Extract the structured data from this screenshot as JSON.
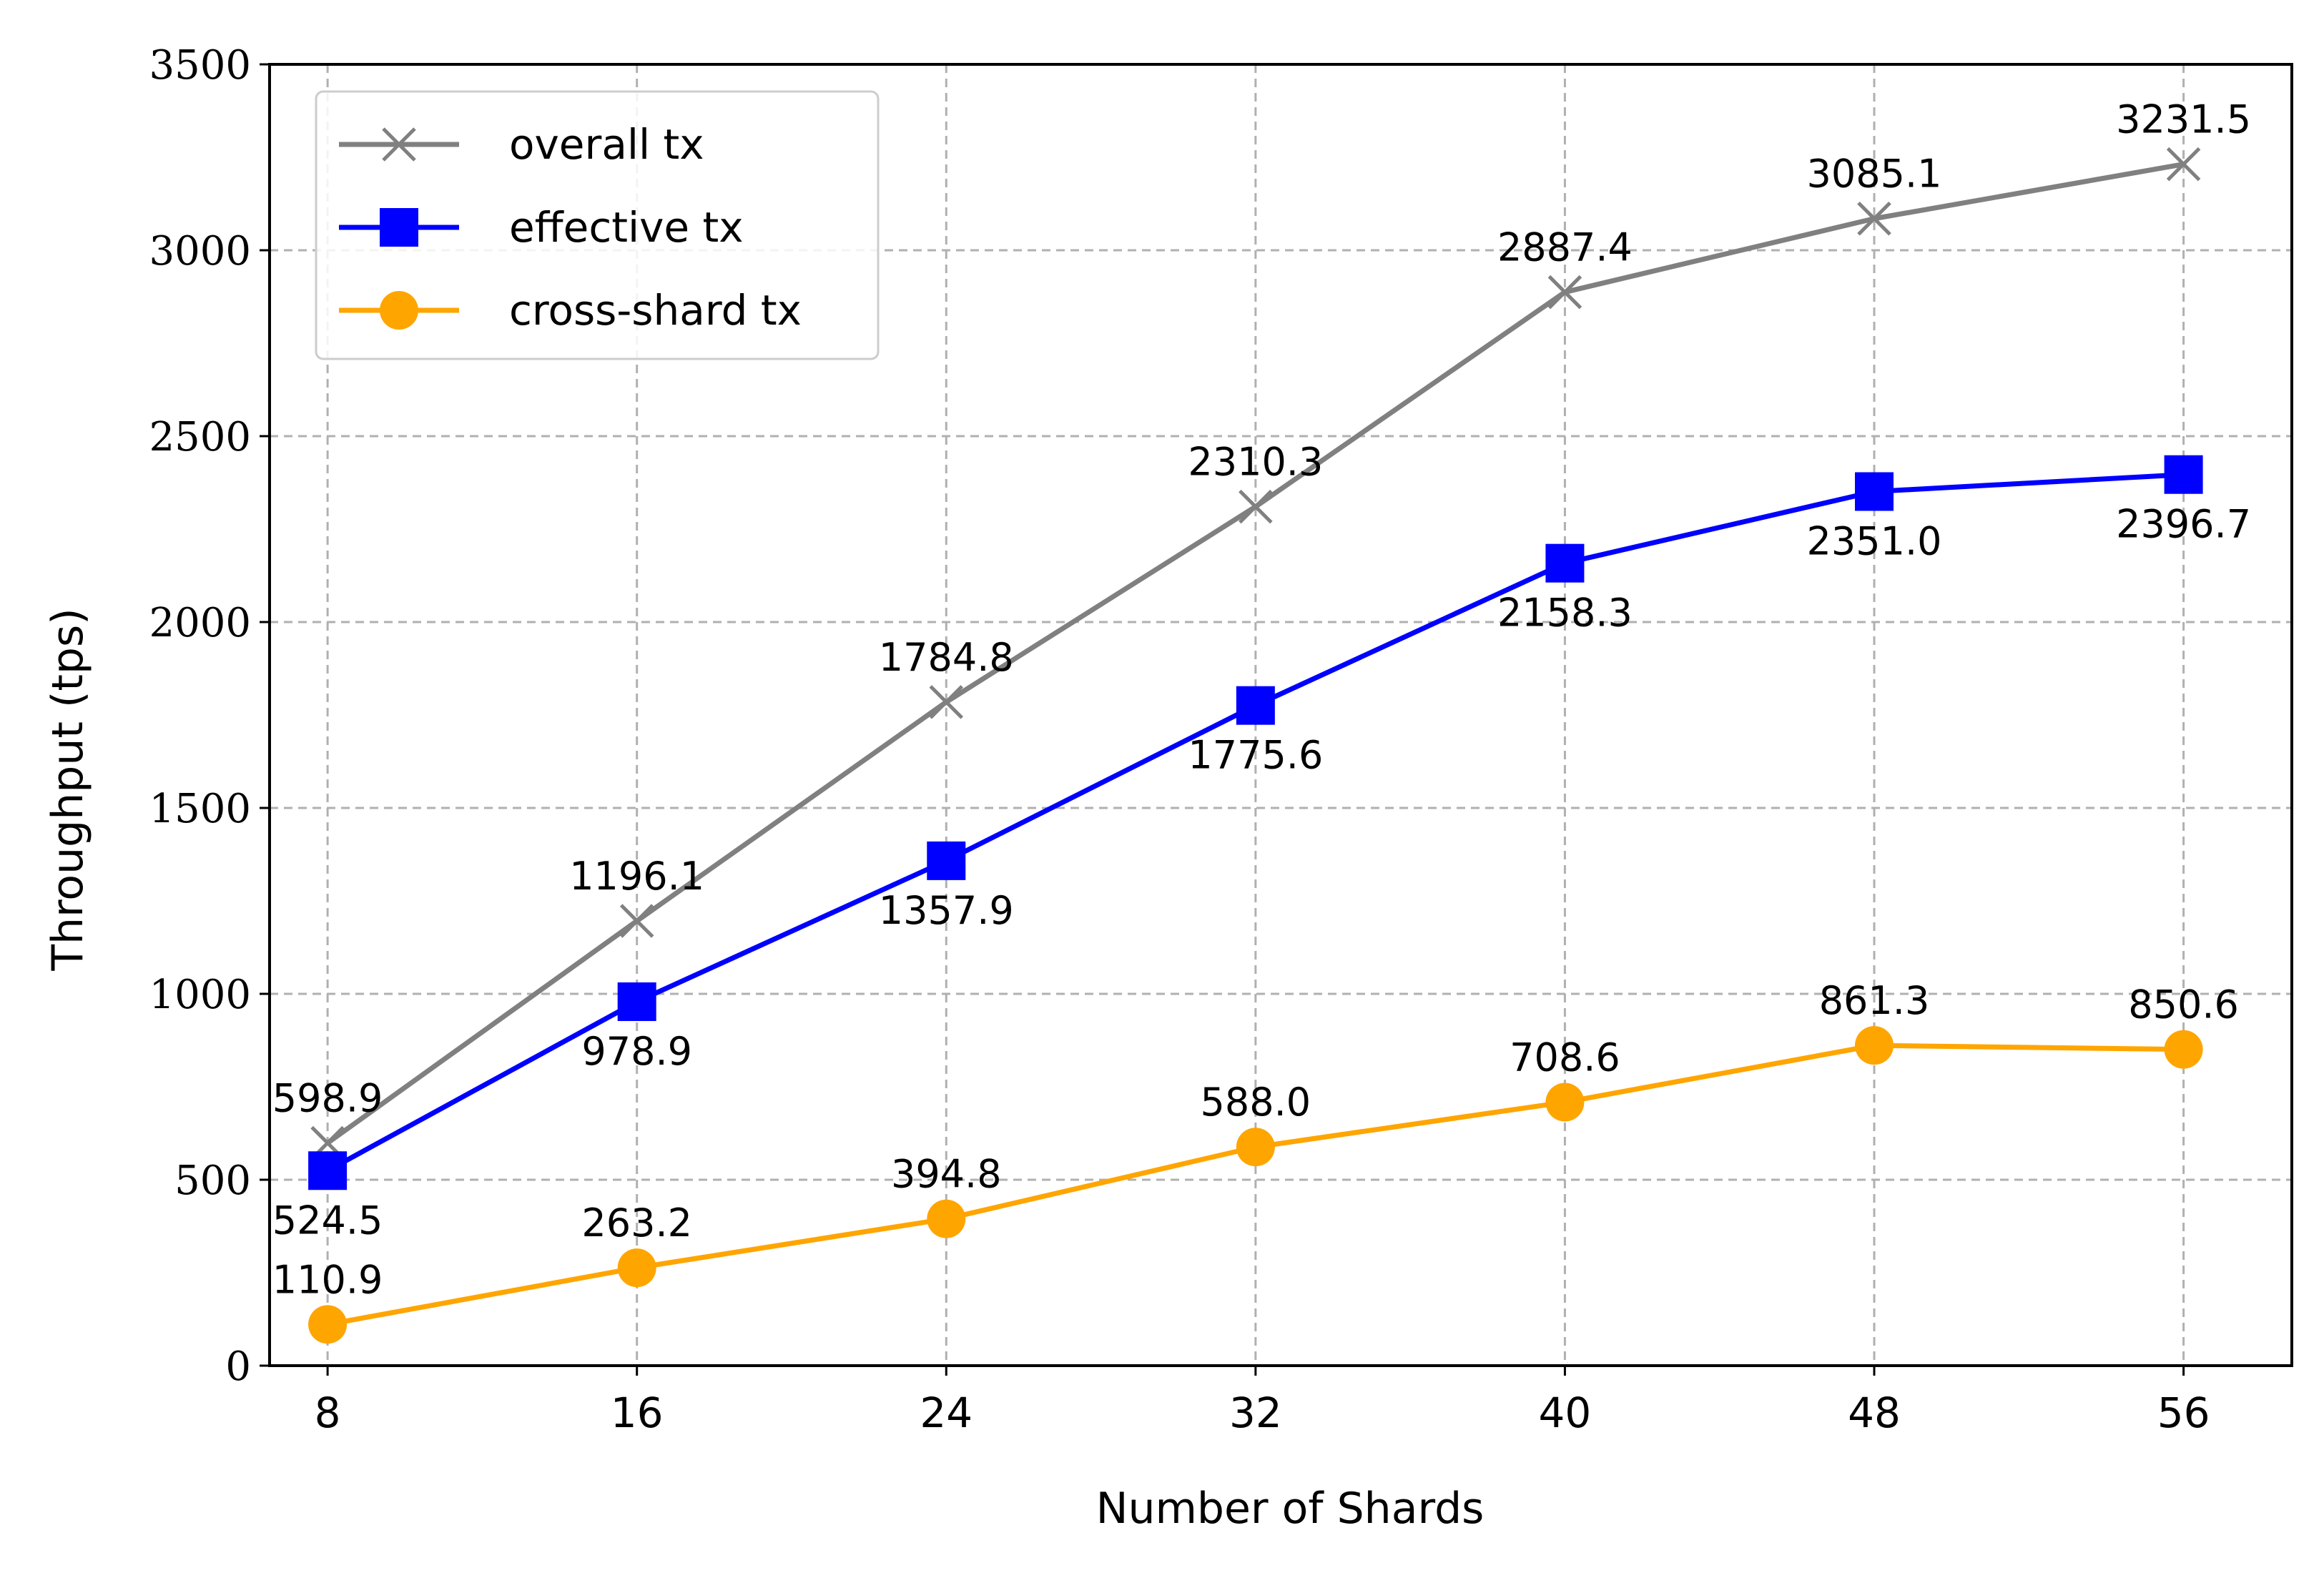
{
  "chart_data": {
    "type": "line",
    "title": "",
    "xlabel": "Number of Shards",
    "ylabel": "Throughput (tps)",
    "x": [
      8,
      16,
      24,
      32,
      40,
      48,
      56
    ],
    "x_tick_labels": [
      "8",
      "16",
      "24",
      "32",
      "40",
      "48",
      "56"
    ],
    "ylim": [
      0,
      3500
    ],
    "y_ticks": [
      0,
      500,
      1000,
      1500,
      2000,
      2500,
      3000,
      3500
    ],
    "y_tick_labels": [
      "0",
      "500",
      "1000",
      "1500",
      "2000",
      "2500",
      "3000",
      "3500"
    ],
    "grid": true,
    "legend_position": "top-left",
    "series": [
      {
        "name": "overall tx",
        "color": "#808080",
        "marker": "x",
        "values": [
          598.9,
          1196.1,
          1784.8,
          2310.3,
          2887.4,
          3085.1,
          3231.5
        ],
        "value_labels": [
          "598.9",
          "1196.1",
          "1784.8",
          "2310.3",
          "2887.4",
          "3085.1",
          "3231.5"
        ],
        "label_position": "above"
      },
      {
        "name": "effective tx",
        "color": "#0000ff",
        "marker": "square",
        "values": [
          524.5,
          978.9,
          1357.9,
          1775.6,
          2158.3,
          2351.0,
          2396.7
        ],
        "value_labels": [
          "524.5",
          "978.9",
          "1357.9",
          "1775.6",
          "2158.3",
          "2351.0",
          "2396.7"
        ],
        "label_position": "below"
      },
      {
        "name": "cross-shard tx",
        "color": "#ffa500",
        "marker": "circle",
        "values": [
          110.9,
          263.2,
          394.8,
          588.0,
          708.6,
          861.3,
          850.6
        ],
        "value_labels": [
          "110.9",
          "263.2",
          "394.8",
          "588.0",
          "708.6",
          "861.3",
          "850.6"
        ],
        "label_position": "above"
      }
    ]
  }
}
